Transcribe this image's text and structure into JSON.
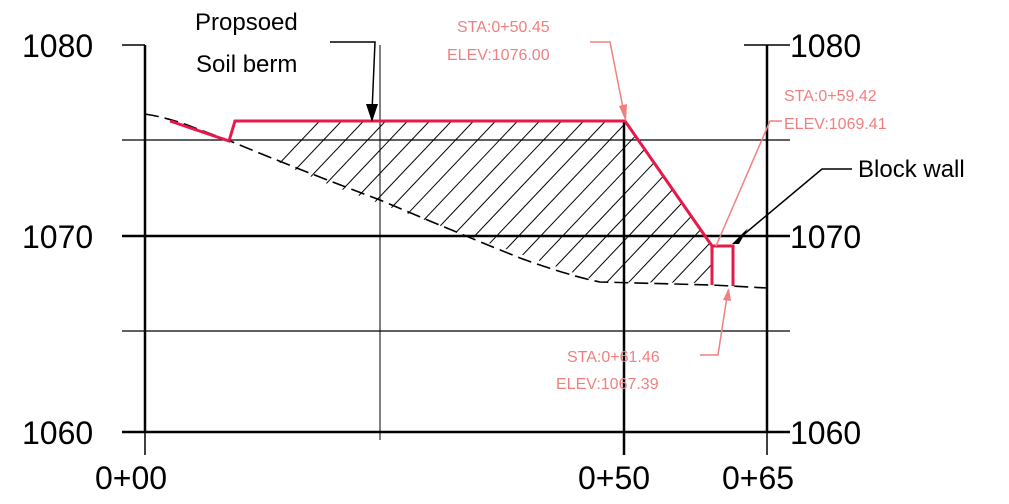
{
  "left_axis": {
    "labels": [
      "1080",
      "1070",
      "1060"
    ]
  },
  "right_axis": {
    "labels": [
      "1080",
      "1070",
      "1060"
    ]
  },
  "bottom_axis": {
    "labels": [
      "0+00",
      "0+50",
      "0+65"
    ]
  },
  "annotations": {
    "berm_line1": "Propsoed",
    "berm_line2": "Soil berm",
    "block_wall": "Block wall"
  },
  "callouts": {
    "top": {
      "sta": "STA:0+50.45",
      "elev": "ELEV:1076.00"
    },
    "right": {
      "sta": "STA:0+59.42",
      "elev": "ELEV:1069.41"
    },
    "bottom": {
      "sta": "STA:0+61.46",
      "elev": "ELEV:1067.39"
    }
  },
  "colors": {
    "berm": "#e8184a",
    "callout": "#f08080",
    "grid": "#000000"
  }
}
